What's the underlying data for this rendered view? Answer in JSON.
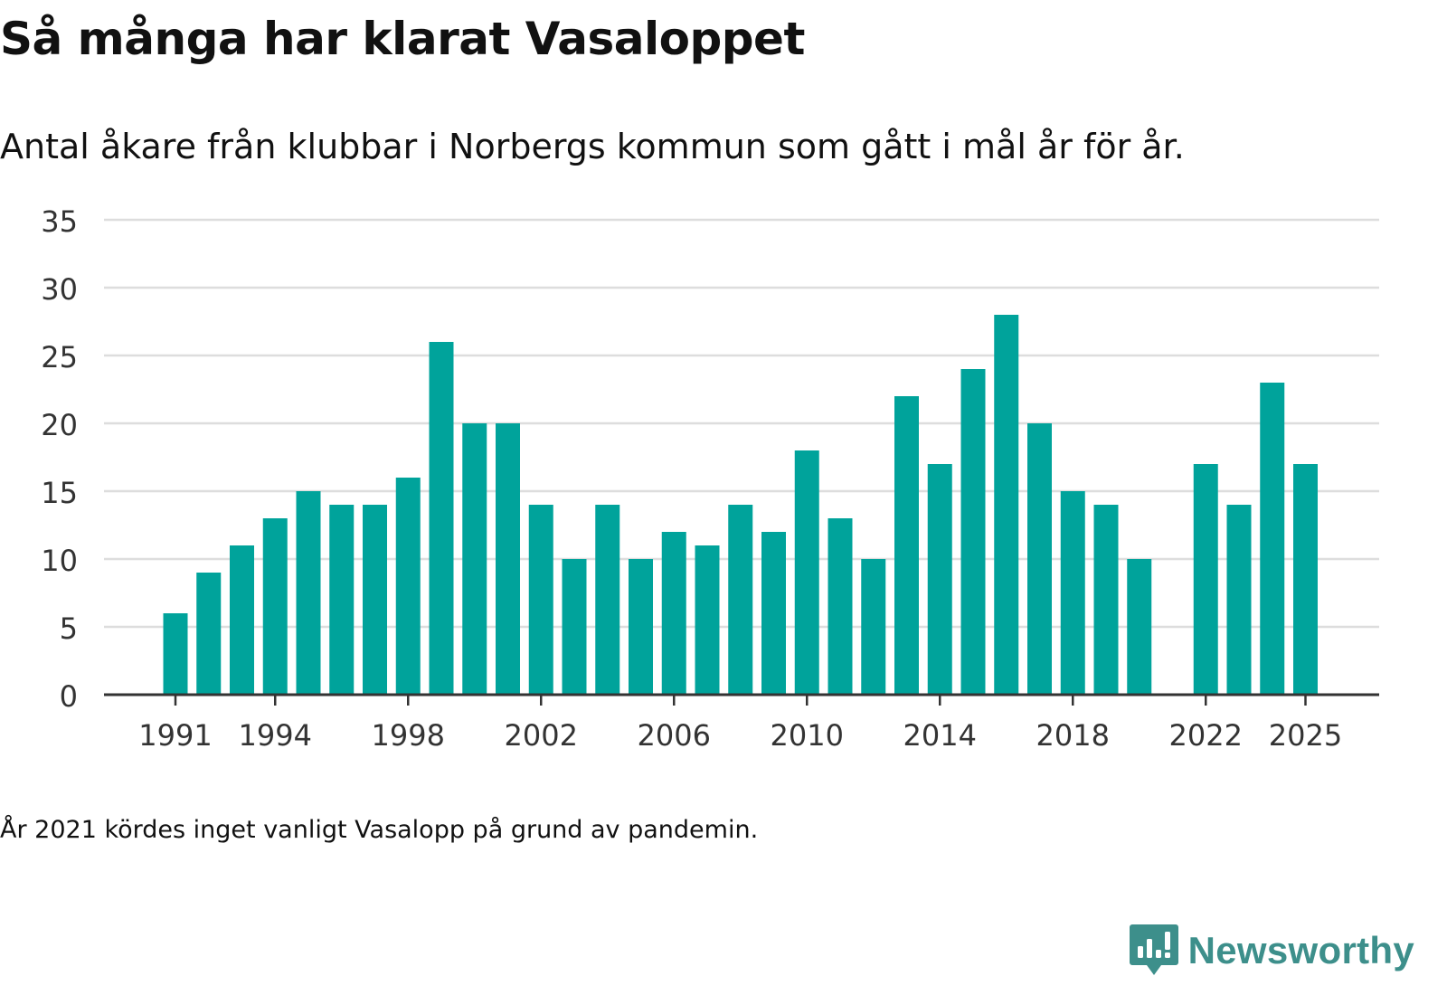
{
  "title": "Så många har klarat Vasaloppet",
  "subtitle": "Antal åkare från klubbar i Norbergs kommun som gått i mål år för år.",
  "note": "År 2021 kördes inget vanligt Vasalopp på grund av pandemin.",
  "brand": {
    "name": "Newsworthy",
    "icon": "newsworthy-logo-icon"
  },
  "colors": {
    "bar": "#00a39b",
    "grid": "#dddddd",
    "axis": "#333333",
    "brand": "#3d8f8b"
  },
  "chart_data": {
    "type": "bar",
    "title": "Så många har klarat Vasaloppet",
    "xlabel": "",
    "ylabel": "",
    "ylim": [
      0,
      35
    ],
    "yticks": [
      0,
      5,
      10,
      15,
      20,
      25,
      30,
      35
    ],
    "xticks": [
      1991,
      1994,
      1998,
      2002,
      2006,
      2010,
      2014,
      2018,
      2022,
      2025
    ],
    "grid": true,
    "categories": [
      1991,
      1992,
      1993,
      1994,
      1995,
      1996,
      1997,
      1998,
      1999,
      2000,
      2001,
      2002,
      2003,
      2004,
      2005,
      2006,
      2007,
      2008,
      2009,
      2010,
      2011,
      2012,
      2013,
      2014,
      2015,
      2016,
      2017,
      2018,
      2019,
      2020,
      2021,
      2022,
      2023,
      2024,
      2025
    ],
    "values": [
      6,
      9,
      11,
      13,
      15,
      14,
      14,
      16,
      26,
      20,
      20,
      14,
      10,
      14,
      10,
      12,
      11,
      14,
      12,
      18,
      13,
      10,
      22,
      17,
      24,
      28,
      20,
      15,
      14,
      10,
      null,
      17,
      14,
      23,
      17
    ]
  }
}
